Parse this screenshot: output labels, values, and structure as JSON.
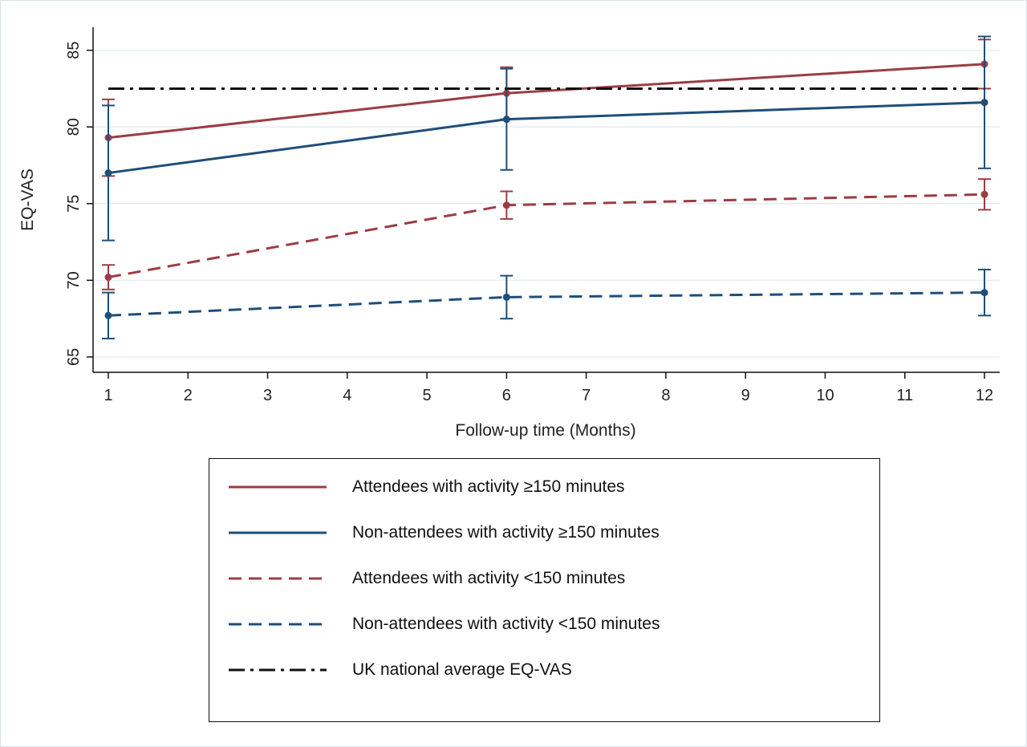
{
  "chart_data": {
    "type": "line",
    "xlabel": "Follow-up time (Months)",
    "ylabel": "EQ-VAS",
    "xlim": [
      1,
      12
    ],
    "ylim": [
      64,
      86.5
    ],
    "x_ticks": [
      1,
      2,
      3,
      4,
      5,
      6,
      7,
      8,
      9,
      10,
      11,
      12
    ],
    "y_ticks": [
      65,
      70,
      75,
      80,
      85
    ],
    "grid": true,
    "legend_position": "bottom",
    "series": [
      {
        "name": "Attendees with activity ≥150 minutes",
        "color": "#9b3d45",
        "style": "solid",
        "x": [
          1,
          6,
          12
        ],
        "y": [
          79.3,
          82.2,
          84.1
        ],
        "ci_low": [
          76.8,
          80.5,
          82.5
        ],
        "ci_high": [
          81.8,
          83.9,
          85.7
        ]
      },
      {
        "name": "Non-attendees with activity ≥150 minutes",
        "color": "#1f4e79",
        "style": "solid",
        "x": [
          1,
          6,
          12
        ],
        "y": [
          77.0,
          80.5,
          81.6
        ],
        "ci_low": [
          72.6,
          77.2,
          77.3
        ],
        "ci_high": [
          81.4,
          83.8,
          85.9
        ]
      },
      {
        "name": "Attendees with activity <150 minutes",
        "color": "#9b3d45",
        "style": "dashed",
        "x": [
          1,
          6,
          12
        ],
        "y": [
          70.2,
          74.9,
          75.6
        ],
        "ci_low": [
          69.4,
          74.0,
          74.6
        ],
        "ci_high": [
          71.0,
          75.8,
          76.6
        ]
      },
      {
        "name": "Non-attendees with activity <150 minutes",
        "color": "#1f4e79",
        "style": "dashed",
        "x": [
          1,
          6,
          12
        ],
        "y": [
          67.7,
          68.9,
          69.2
        ],
        "ci_low": [
          66.2,
          67.5,
          67.7
        ],
        "ci_high": [
          69.2,
          70.3,
          70.7
        ]
      },
      {
        "name": "UK national average EQ-VAS",
        "color": "#111111",
        "style": "dashdot",
        "x": [
          1,
          12
        ],
        "y": [
          82.5,
          82.5
        ]
      }
    ]
  }
}
